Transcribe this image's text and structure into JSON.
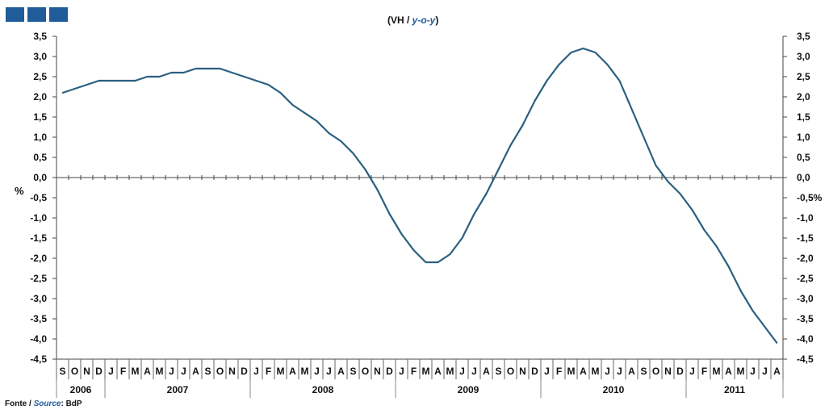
{
  "header": {
    "title_prefix": "(VH / ",
    "title_italic": "y-o-y",
    "title_suffix": ")",
    "accent_color": "#1f5c99",
    "decorative_blocks": 3
  },
  "footer": {
    "source_prefix": "Fonte / ",
    "source_italic": "Source",
    "source_suffix": ": BdP"
  },
  "chart_data": {
    "type": "line",
    "ylabel": "%",
    "ylim": [
      -4.5,
      3.5
    ],
    "ytick_step": 0.5,
    "yticks_left": [
      "3,5",
      "3,0",
      "2,5",
      "2,0",
      "1,5",
      "1,0",
      "0,5",
      "0,0",
      "-0,5",
      "-1,0",
      "-1,5",
      "-2,0",
      "-2,5",
      "-3,0",
      "-3,5",
      "-4,0",
      "-4,5"
    ],
    "yticks_right": [
      "3,5",
      "3,0",
      "2,5",
      "2,0",
      "1,5",
      "1,0",
      "0,5",
      "0,0",
      "-0,5%",
      "-1,0",
      "-1,5",
      "-2,0",
      "-2,5",
      "-3,0",
      "-3,5",
      "-4,0",
      "-4,5"
    ],
    "month_labels": [
      "S",
      "O",
      "N",
      "D",
      "J",
      "F",
      "M",
      "A",
      "M",
      "J",
      "J",
      "A",
      "S",
      "O",
      "N",
      "D",
      "J",
      "F",
      "M",
      "A",
      "M",
      "J",
      "J",
      "A",
      "S",
      "O",
      "N",
      "D",
      "J",
      "F",
      "M",
      "A",
      "M",
      "J",
      "J",
      "A",
      "S",
      "O",
      "N",
      "D",
      "J",
      "F",
      "M",
      "A",
      "M",
      "J",
      "J",
      "A",
      "S",
      "O",
      "N",
      "D",
      "J",
      "F",
      "M",
      "A",
      "M",
      "J",
      "J",
      "A"
    ],
    "years": [
      {
        "label": "2006",
        "months": 4
      },
      {
        "label": "2007",
        "months": 12
      },
      {
        "label": "2008",
        "months": 12
      },
      {
        "label": "2009",
        "months": 12
      },
      {
        "label": "2010",
        "months": 12
      },
      {
        "label": "2011",
        "months": 8
      }
    ],
    "line_color": "#2a5f80",
    "values": [
      2.1,
      2.2,
      2.3,
      2.4,
      2.4,
      2.4,
      2.4,
      2.5,
      2.5,
      2.6,
      2.6,
      2.7,
      2.7,
      2.7,
      2.6,
      2.5,
      2.4,
      2.3,
      2.1,
      1.8,
      1.6,
      1.4,
      1.1,
      0.9,
      0.6,
      0.2,
      -0.3,
      -0.9,
      -1.4,
      -1.8,
      -2.1,
      -2.1,
      -1.9,
      -1.5,
      -0.9,
      -0.4,
      0.2,
      0.8,
      1.3,
      1.9,
      2.4,
      2.8,
      3.1,
      3.2,
      3.1,
      2.8,
      2.4,
      1.7,
      1.0,
      0.3,
      -0.1,
      -0.4,
      -0.8,
      -1.3,
      -1.7,
      -2.2,
      -2.8,
      -3.3,
      -3.7,
      -4.1
    ],
    "grid": false,
    "legend": "none"
  }
}
